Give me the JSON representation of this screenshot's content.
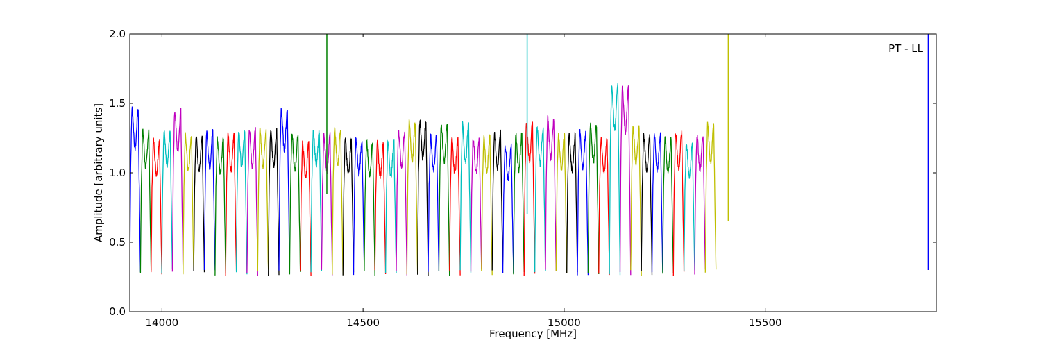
{
  "chart_data": {
    "type": "line",
    "xlabel": "Frequency [MHz]",
    "ylabel": "Amplitude [arbitrary units]",
    "annotation": "PT - LL",
    "xlim": [
      13920,
      15925
    ],
    "ylim": [
      0,
      2.0
    ],
    "xticks": [
      14000,
      14500,
      15000,
      15500
    ],
    "yticks": [
      0.0,
      0.5,
      1.0,
      1.5,
      2.0
    ],
    "xtick_labels": [
      "14000",
      "14500",
      "15000",
      "15500"
    ],
    "ytick_labels": [
      "0.0",
      "0.5",
      "1.0",
      "1.5",
      "2.0"
    ],
    "grid": false,
    "colors": [
      "#0000ff",
      "#008000",
      "#ff0000",
      "#00bfbf",
      "#bf00bf",
      "#bfbf00",
      "#000000"
    ],
    "channel_spacing_mhz": 26.5,
    "channel_first_start_mhz": 13920,
    "channel_peaks": [
      1.47,
      1.3,
      1.24,
      1.3,
      1.45,
      1.27,
      1.27,
      1.3,
      1.25,
      1.28,
      1.3,
      1.31,
      1.31,
      1.31,
      1.46,
      1.27,
      1.21,
      1.31,
      1.27,
      1.32,
      1.24,
      1.24,
      1.23,
      1.22,
      1.22,
      1.3,
      1.36,
      1.38,
      1.27,
      1.35,
      1.25,
      1.35,
      1.25,
      1.26,
      1.29,
      1.2,
      1.28,
      1.36,
      1.33,
      1.39,
      1.28,
      1.27,
      1.3,
      1.35,
      1.25,
      1.64,
      1.62,
      1.33,
      1.27,
      1.28,
      1.25,
      1.29,
      1.21,
      1.27,
      1.35
    ],
    "spikes": [
      {
        "x": 14410,
        "y_top": 2.0,
        "y_bottom": 0.85,
        "color": "#008000"
      },
      {
        "x": 14908,
        "y_top": 2.0,
        "y_bottom": 0.7,
        "color": "#00bfbf"
      },
      {
        "x": 15408,
        "y_top": 2.0,
        "y_bottom": 0.65,
        "color": "#bfbf00"
      },
      {
        "x": 15905,
        "y_top": 2.0,
        "y_bottom": 0.3,
        "color": "#0000ff"
      }
    ],
    "dip_min": 0.28
  }
}
